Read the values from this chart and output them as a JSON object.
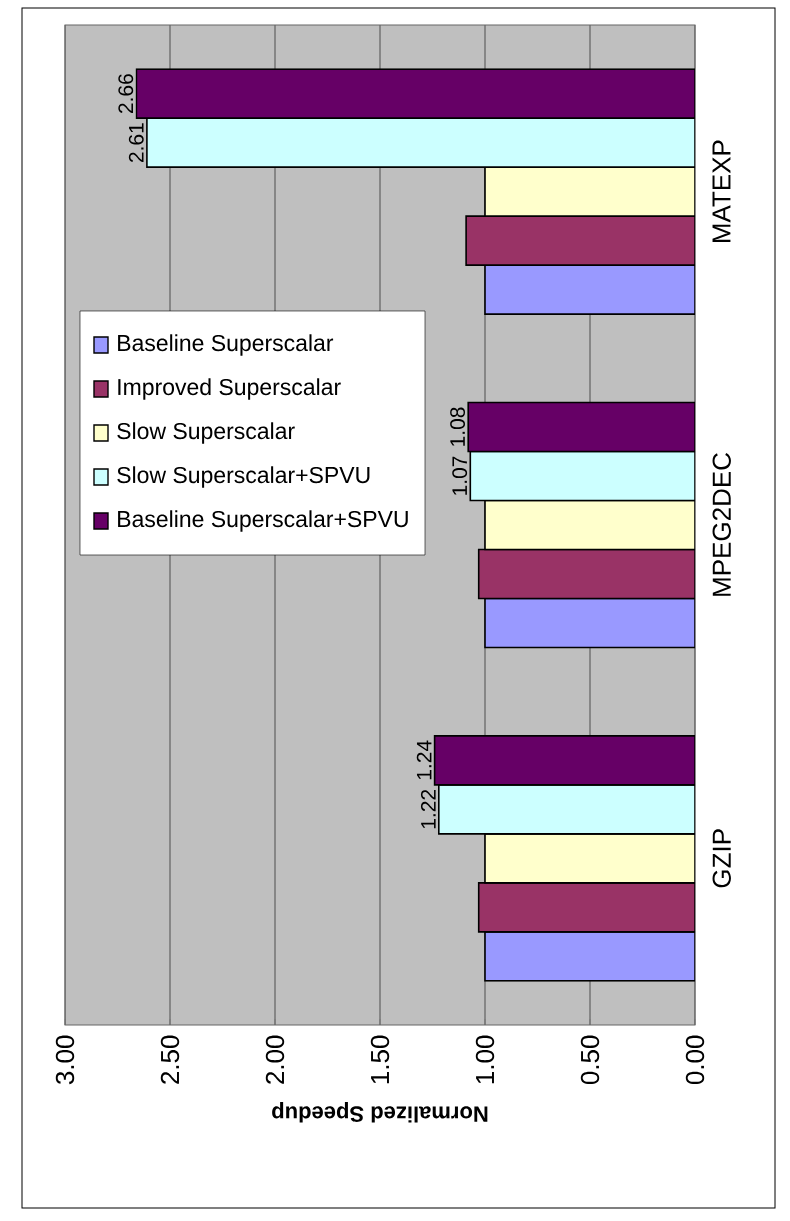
{
  "chart_data": {
    "type": "bar",
    "orientation": "horizontal",
    "xlabel": "Normalized Speedup",
    "categories": [
      "MATEXP",
      "MPEG2DEC",
      "GZIP"
    ],
    "series": [
      {
        "name": "Baseline Superscalar",
        "color": "#9999ff",
        "values": [
          1.0,
          1.0,
          1.0
        ]
      },
      {
        "name": "Improved Superscalar",
        "color": "#993366",
        "values": [
          1.09,
          1.03,
          1.03
        ]
      },
      {
        "name": "Slow  Superscalar",
        "color": "#ffffcc",
        "values": [
          1.0,
          1.0,
          1.0
        ]
      },
      {
        "name": "Slow  Superscalar+SPVU",
        "color": "#ccffff",
        "values": [
          2.61,
          1.07,
          1.22
        ],
        "value_labels": [
          "2.61",
          "1.07",
          "1.22"
        ]
      },
      {
        "name": "Baseline Superscalar+SPVU",
        "color": "#660066",
        "values": [
          2.66,
          1.08,
          1.24
        ],
        "value_labels": [
          "2.66",
          "1.08",
          "1.24"
        ]
      }
    ],
    "xlim": [
      3,
      0
    ],
    "xticks": [
      {
        "value": 3,
        "label": "3.00"
      },
      {
        "value": 2.5,
        "label": "2.50"
      },
      {
        "value": 2,
        "label": "2.00"
      },
      {
        "value": 1.5,
        "label": "1.50"
      },
      {
        "value": 1,
        "label": "1.00"
      },
      {
        "value": 0.5,
        "label": "0.50"
      },
      {
        "value": 0,
        "label": "0.00"
      }
    ],
    "grid": "x",
    "legend": "left"
  }
}
